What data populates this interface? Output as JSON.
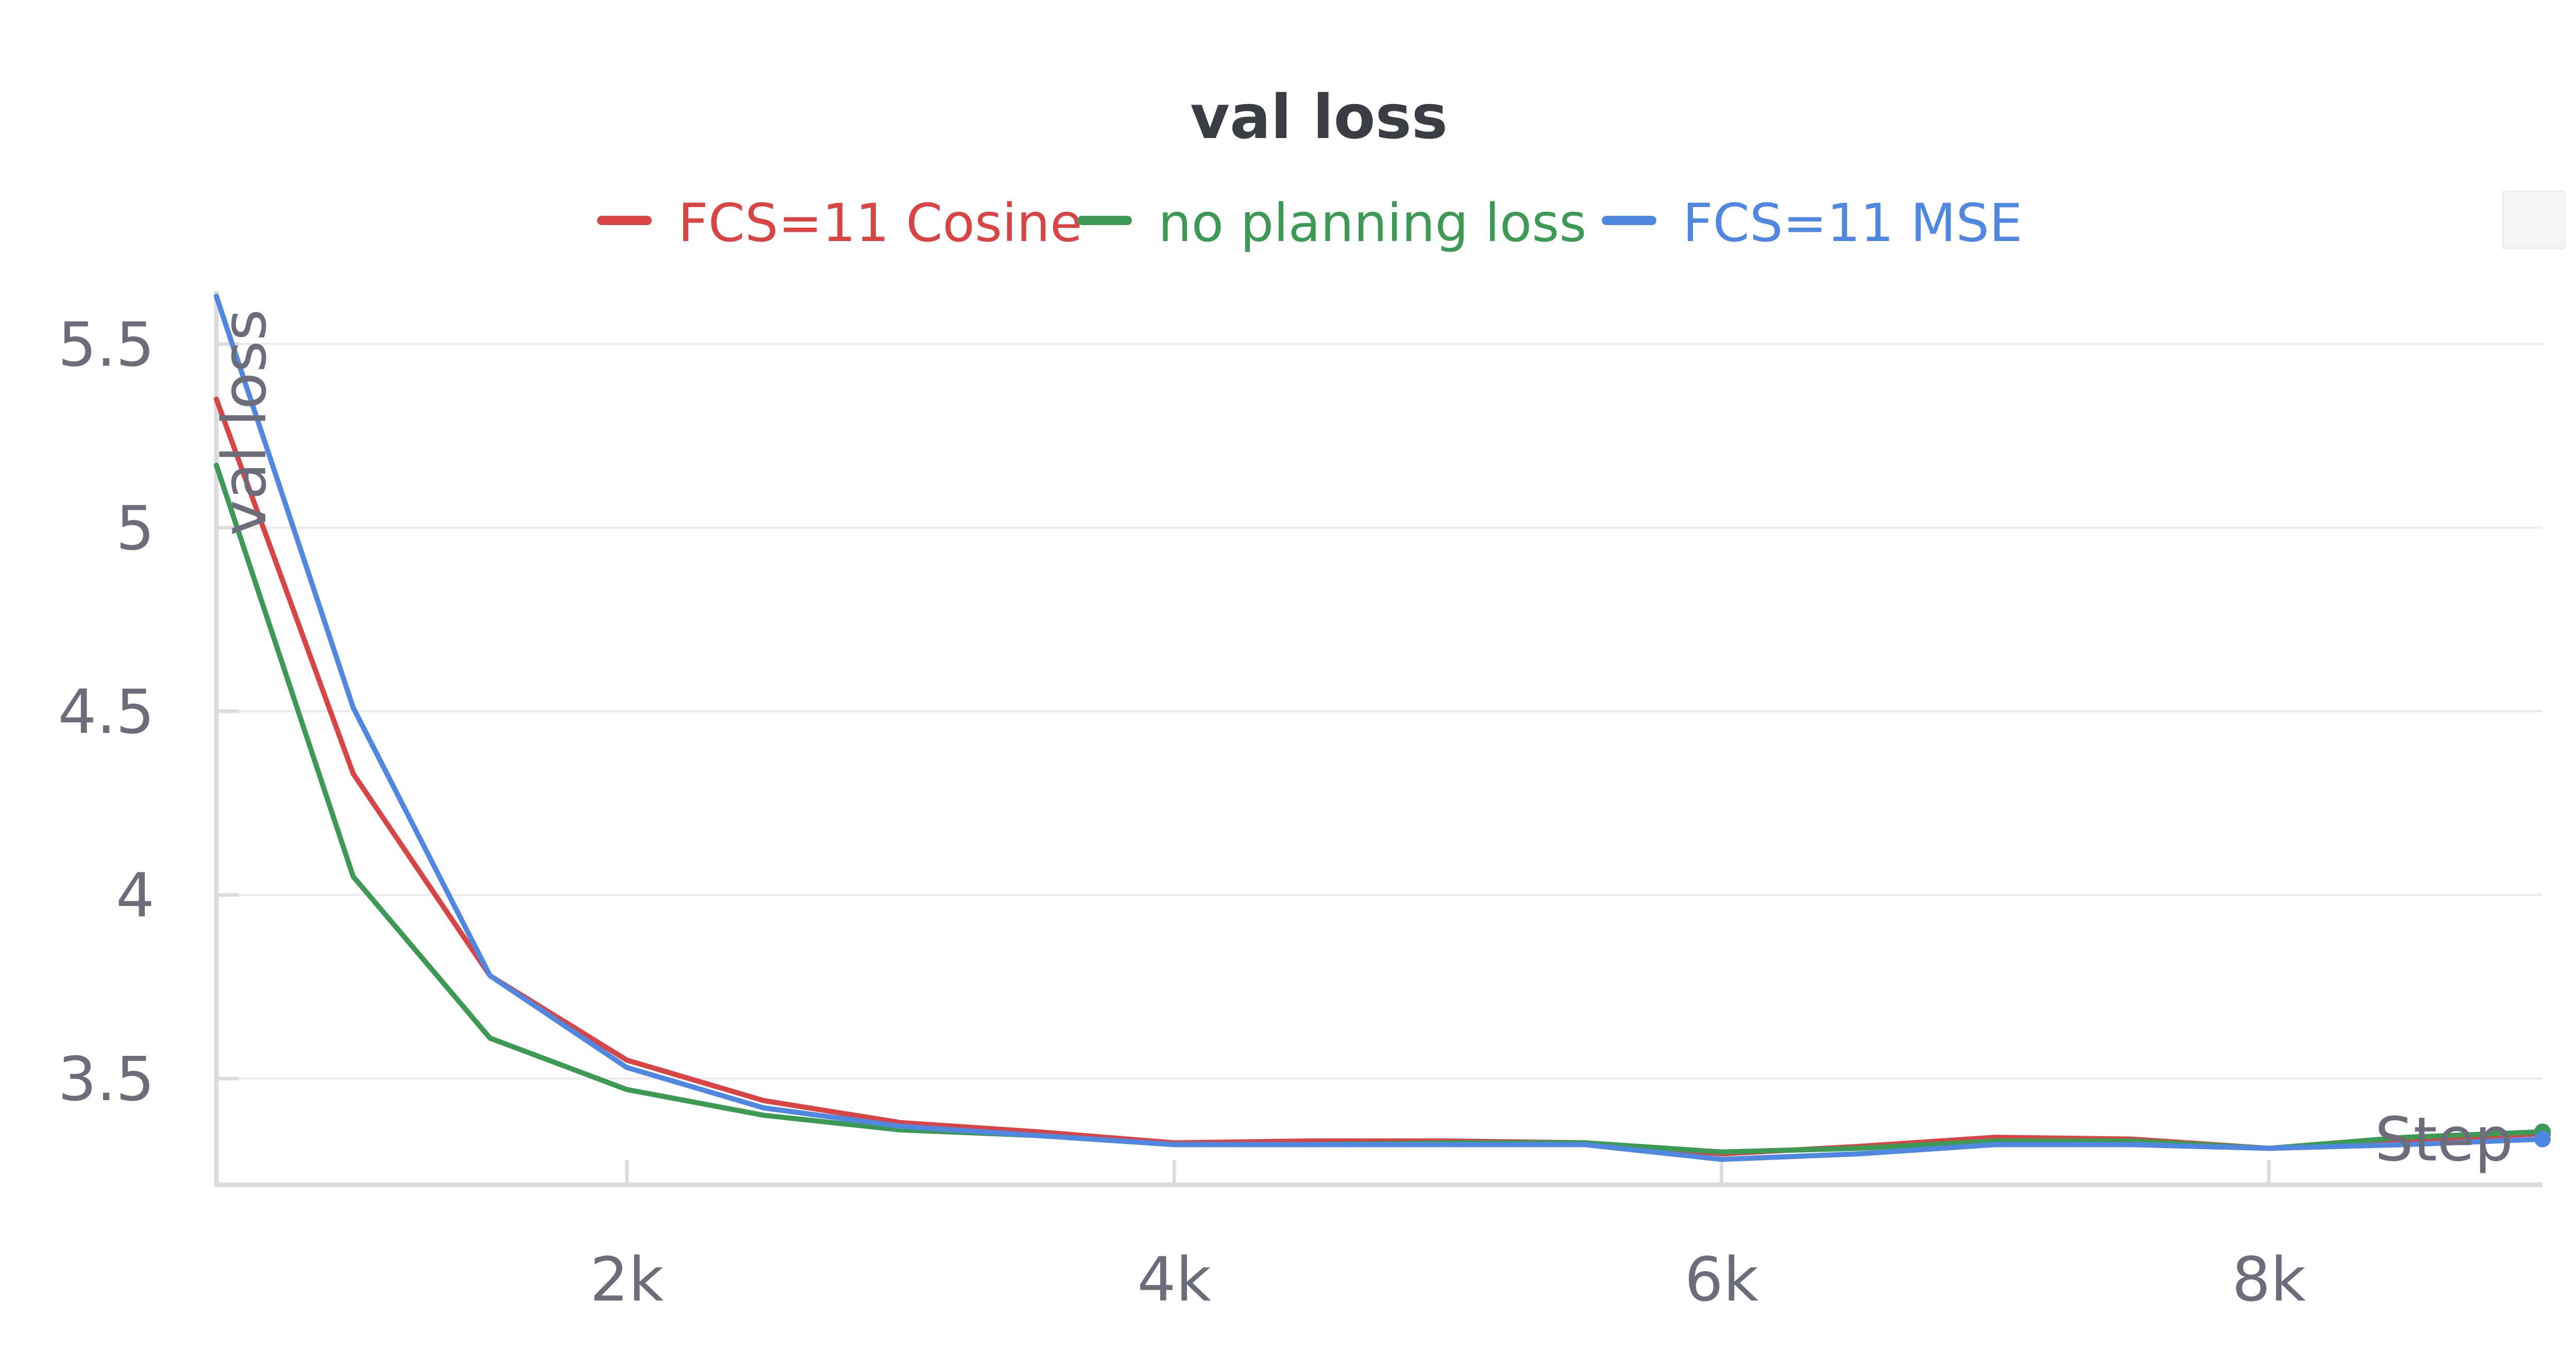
{
  "chart_data": {
    "type": "line",
    "title": "val loss",
    "xlabel": "Step",
    "ylabel": "val loss",
    "xlim": [
      500,
      9000
    ],
    "ylim": [
      3.22,
      5.65
    ],
    "x_ticks": [
      {
        "value": 2000,
        "label": "2k"
      },
      {
        "value": 4000,
        "label": "4k"
      },
      {
        "value": 6000,
        "label": "6k"
      },
      {
        "value": 8000,
        "label": "8k"
      }
    ],
    "y_ticks": [
      {
        "value": 3.5,
        "label": "3.5"
      },
      {
        "value": 4,
        "label": "4"
      },
      {
        "value": 4.5,
        "label": "4.5"
      },
      {
        "value": 5,
        "label": "5"
      },
      {
        "value": 5.5,
        "label": "5.5"
      }
    ],
    "grid": true,
    "legend_position": "top",
    "series": [
      {
        "name": "FCS=11 Cosine",
        "color": "#d94545",
        "x": [
          500,
          1000,
          1500,
          2000,
          2500,
          3000,
          3500,
          4000,
          4500,
          5000,
          5500,
          6000,
          6500,
          7000,
          7500,
          8000,
          8500,
          9000
        ],
        "y": [
          5.35,
          4.33,
          3.78,
          3.55,
          3.44,
          3.38,
          3.355,
          3.325,
          3.33,
          3.33,
          3.325,
          3.295,
          3.315,
          3.34,
          3.335,
          3.31,
          3.33,
          3.35
        ]
      },
      {
        "name": "no planning loss",
        "color": "#3d9a54",
        "x": [
          500,
          1000,
          1500,
          2000,
          2500,
          3000,
          3500,
          4000,
          4500,
          5000,
          5500,
          6000,
          6500,
          7000,
          7500,
          8000,
          8500,
          9000
        ],
        "y": [
          5.17,
          4.05,
          3.61,
          3.47,
          3.4,
          3.36,
          3.345,
          3.32,
          3.32,
          3.325,
          3.325,
          3.3,
          3.31,
          3.33,
          3.33,
          3.31,
          3.34,
          3.355
        ]
      },
      {
        "name": "FCS=11 MSE",
        "color": "#5087e0",
        "x": [
          500,
          1000,
          1500,
          2000,
          2500,
          3000,
          3500,
          4000,
          4500,
          5000,
          5500,
          6000,
          6500,
          7000,
          7500,
          8000,
          8500,
          9000
        ],
        "y": [
          5.63,
          4.51,
          3.78,
          3.53,
          3.42,
          3.37,
          3.345,
          3.32,
          3.32,
          3.32,
          3.32,
          3.28,
          3.295,
          3.32,
          3.32,
          3.31,
          3.32,
          3.335
        ]
      }
    ]
  }
}
